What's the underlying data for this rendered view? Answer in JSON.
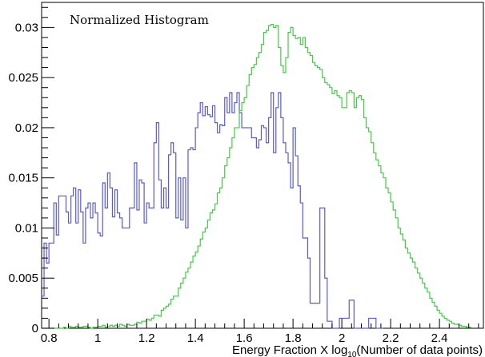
{
  "chart_data": {
    "type": "histogram",
    "title": "Normalized Histogram",
    "xlabel_parts": [
      "Energy Fraction X log",
      "10",
      "(Number of data points)"
    ],
    "ylabel": "",
    "xlim": [
      0.77,
      2.58
    ],
    "ylim": [
      0,
      0.0325
    ],
    "grid": false,
    "legend": "none",
    "x_ticks": [
      0.8,
      1.0,
      1.2,
      1.4,
      1.6,
      1.8,
      2.0,
      2.2,
      2.4
    ],
    "x_tick_labels": [
      "0.8",
      "1",
      "1.2",
      "1.4",
      "1.6",
      "1.8",
      "2",
      "2.2",
      "2.4"
    ],
    "y_ticks": [
      0,
      0.005,
      0.01,
      0.015,
      0.02,
      0.025,
      0.03
    ],
    "y_tick_labels": [
      "0",
      "0.005",
      "0.01",
      "0.015",
      "0.02",
      "0.025",
      "0.03"
    ],
    "series": [
      {
        "color": "#5a5ad6",
        "x_start": 0.77,
        "bin_width": 0.01,
        "values": [
          0.0032,
          0.0085,
          0.0065,
          0.0085,
          0.0085,
          0.0125,
          0.0093,
          0.0132,
          0.0132,
          0.0132,
          0.0116,
          0.0105,
          0.0132,
          0.014,
          0.0105,
          0.0138,
          0.0116,
          0.0085,
          0.012,
          0.0125,
          0.011,
          0.0125,
          0.0115,
          0.0095,
          0.0092,
          0.0145,
          0.012,
          0.0155,
          0.014,
          0.0111,
          0.0138,
          0.0115,
          0.011,
          0.01,
          0.01,
          0.01,
          0.012,
          0.012,
          0.0165,
          0.0118,
          0.0148,
          0.0145,
          0.0105,
          0.0125,
          0.012,
          0.012,
          0.0185,
          0.0205,
          0.0148,
          0.012,
          0.014,
          0.012,
          0.0173,
          0.0185,
          0.0175,
          0.011,
          0.015,
          0.0108,
          0.015,
          0.01,
          0.0178,
          0.018,
          0.0178,
          0.02,
          0.0215,
          0.0225,
          0.0212,
          0.0221,
          0.0213,
          0.0211,
          0.0222,
          0.0205,
          0.0195,
          0.0203,
          0.0202,
          0.023,
          0.0215,
          0.0235,
          0.0215,
          0.0225,
          0.0235,
          0.0215,
          0.02,
          0.02,
          0.02,
          0.02,
          0.019,
          0.019,
          0.018,
          0.0188,
          0.0202,
          0.02,
          0.0185,
          0.021,
          0.0235,
          0.0175,
          0.022,
          0.0235,
          0.021,
          0.0185,
          0.0175,
          0.0165,
          0.014,
          0.02,
          0.0172,
          0.0142,
          0.0125,
          0.009,
          0.009,
          0.007,
          0.0025,
          0.0025,
          0.0025,
          0.0025,
          0.012,
          0.012,
          0.005,
          0.0007,
          0.0007,
          0.0,
          0.0,
          0.0,
          0.001,
          0.001,
          0.001,
          0.001,
          0.0028,
          0.0028,
          0.0,
          0.0,
          0.0,
          0.0,
          0.0,
          0.0,
          0.001,
          0.001,
          0.001,
          0.0,
          0.0,
          0.0
        ]
      },
      {
        "color": "#44cc44",
        "x_start": 0.77,
        "bin_width": 0.01,
        "values": [
          0.0,
          0.0,
          0.0,
          0.0,
          0.0,
          0.0,
          0.0,
          0.0,
          0.0,
          0.0001,
          0.0,
          0.0002,
          0.0001,
          0.0001,
          0.0002,
          0.0001,
          0.0001,
          0.0002,
          0.0002,
          0.0001,
          0.0,
          0.0001,
          0.0001,
          0.0002,
          0.0002,
          0.0003,
          0.0001,
          0.0002,
          0.0003,
          0.0002,
          0.0003,
          0.0002,
          0.0004,
          0.0003,
          0.0002,
          0.0004,
          0.0003,
          0.0003,
          0.0004,
          0.0006,
          0.0005,
          0.0007,
          0.0007,
          0.0009,
          0.0008,
          0.001,
          0.0013,
          0.0013,
          0.0012,
          0.0018,
          0.002,
          0.0022,
          0.0024,
          0.0029,
          0.0032,
          0.0032,
          0.004,
          0.0045,
          0.005,
          0.0056,
          0.006,
          0.0066,
          0.0072,
          0.0076,
          0.0082,
          0.0089,
          0.0096,
          0.01,
          0.0108,
          0.0115,
          0.0118,
          0.0124,
          0.0135,
          0.014,
          0.015,
          0.0162,
          0.017,
          0.018,
          0.019,
          0.02,
          0.02,
          0.0217,
          0.0225,
          0.023,
          0.0242,
          0.0253,
          0.026,
          0.0263,
          0.027,
          0.0275,
          0.0283,
          0.0295,
          0.0297,
          0.0302,
          0.0303,
          0.03,
          0.0302,
          0.028,
          0.0262,
          0.0255,
          0.027,
          0.0295,
          0.03,
          0.0292,
          0.0289,
          0.029,
          0.0283,
          0.029,
          0.028,
          0.0275,
          0.0272,
          0.0265,
          0.0262,
          0.026,
          0.0258,
          0.025,
          0.0245,
          0.0243,
          0.024,
          0.0234,
          0.0237,
          0.0232,
          0.023,
          0.022,
          0.022,
          0.0235,
          0.0237,
          0.0235,
          0.022,
          0.023,
          0.0232,
          0.0228,
          0.021,
          0.02,
          0.0196,
          0.0185,
          0.0175,
          0.0168,
          0.0162,
          0.0155,
          0.015,
          0.014,
          0.0135,
          0.0126,
          0.0118,
          0.011,
          0.01,
          0.0094,
          0.0088,
          0.008,
          0.0075,
          0.007,
          0.0066,
          0.006,
          0.0055,
          0.005,
          0.0045,
          0.004,
          0.0036,
          0.003,
          0.0026,
          0.0022,
          0.0018,
          0.0015,
          0.0012,
          0.001,
          0.0008,
          0.0007,
          0.0005,
          0.0004,
          0.0004,
          0.0003,
          0.0002,
          0.0002,
          0.0001,
          0.0001
        ]
      }
    ]
  }
}
